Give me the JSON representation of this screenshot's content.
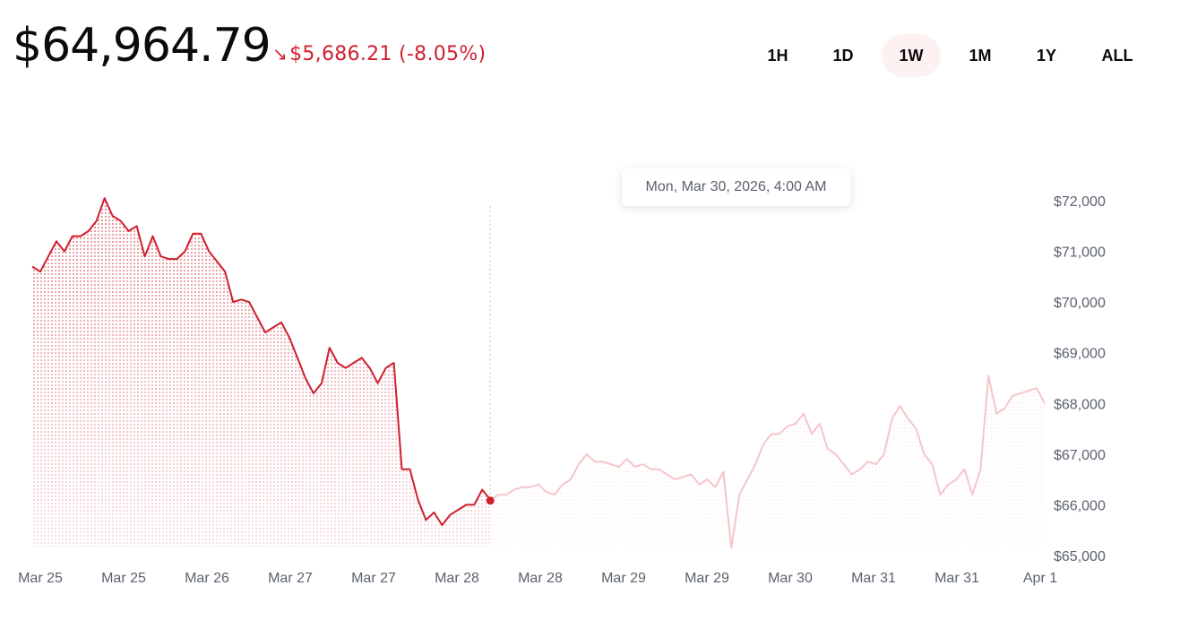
{
  "header": {
    "price": "$64,964.79",
    "change_arrow": "↘",
    "change_text": "$5,686.21 (-8.05%)"
  },
  "ranges": [
    {
      "label": "1H",
      "active": false
    },
    {
      "label": "1D",
      "active": false
    },
    {
      "label": "1W",
      "active": true
    },
    {
      "label": "1M",
      "active": false
    },
    {
      "label": "1Y",
      "active": false
    },
    {
      "label": "ALL",
      "active": false
    }
  ],
  "tooltip": {
    "label": "Mon, Mar 30, 2026, 4:00 AM"
  },
  "colors": {
    "accent": "#cf202f",
    "accent_faded": "#f4c6ca",
    "range_active_bg": "#fdf1f2",
    "text_muted": "#5b616e"
  },
  "chart_data": {
    "type": "area",
    "ylim": [
      65000,
      72000
    ],
    "y_ticks": [
      65000,
      66000,
      67000,
      68000,
      69000,
      70000,
      71000,
      72000
    ],
    "y_tick_labels": [
      "$65,000",
      "$66,000",
      "$67,000",
      "$68,000",
      "$69,000",
      "$70,000",
      "$71,000",
      "$72,000"
    ],
    "x_tick_labels": [
      "Mar 25",
      "Mar 25",
      "Mar 26",
      "Mar 27",
      "Mar 27",
      "Mar 28",
      "Mar 28",
      "Mar 29",
      "Mar 29",
      "Mar 30",
      "Mar 31",
      "Mar 31",
      "Apr 1"
    ],
    "hover_index": 57,
    "series": [
      {
        "values": [
          70700,
          70600,
          70900,
          71200,
          71000,
          71300,
          71300,
          71400,
          71600,
          72050,
          71700,
          71600,
          71400,
          71500,
          70900,
          71300,
          70900,
          70850,
          70850,
          71000,
          71350,
          71350,
          71000,
          70800,
          70600,
          70000,
          70050,
          70000,
          69700,
          69400,
          69500,
          69600,
          69300,
          68900,
          68500,
          68200,
          68400,
          69100,
          68800,
          68700,
          68800,
          68900,
          68700,
          68400,
          68700,
          68800,
          66700,
          66700,
          66100,
          65700,
          65850,
          65600,
          65800,
          65900,
          66000,
          66000,
          66300,
          66100,
          66200,
          66200,
          66300,
          66350,
          66350,
          66400,
          66250,
          66200,
          66400,
          66500,
          66800,
          67000,
          66850,
          66850,
          66800,
          66750,
          66900,
          66750,
          66800,
          66700,
          66700,
          66600,
          66500,
          66550,
          66600,
          66400,
          66500,
          66350,
          66650,
          65150,
          66200,
          66500,
          66800,
          67200,
          67400,
          67400,
          67550,
          67600,
          67800,
          67400,
          67600,
          67100,
          67000,
          66800,
          66600,
          66700,
          66850,
          66800,
          67000,
          67700,
          67950,
          67700,
          67500,
          67000,
          66800,
          66200,
          66400,
          66500,
          66700,
          66200,
          66700,
          68550,
          67800,
          67900,
          68150,
          68200,
          68250,
          68300,
          68000
        ]
      }
    ]
  }
}
